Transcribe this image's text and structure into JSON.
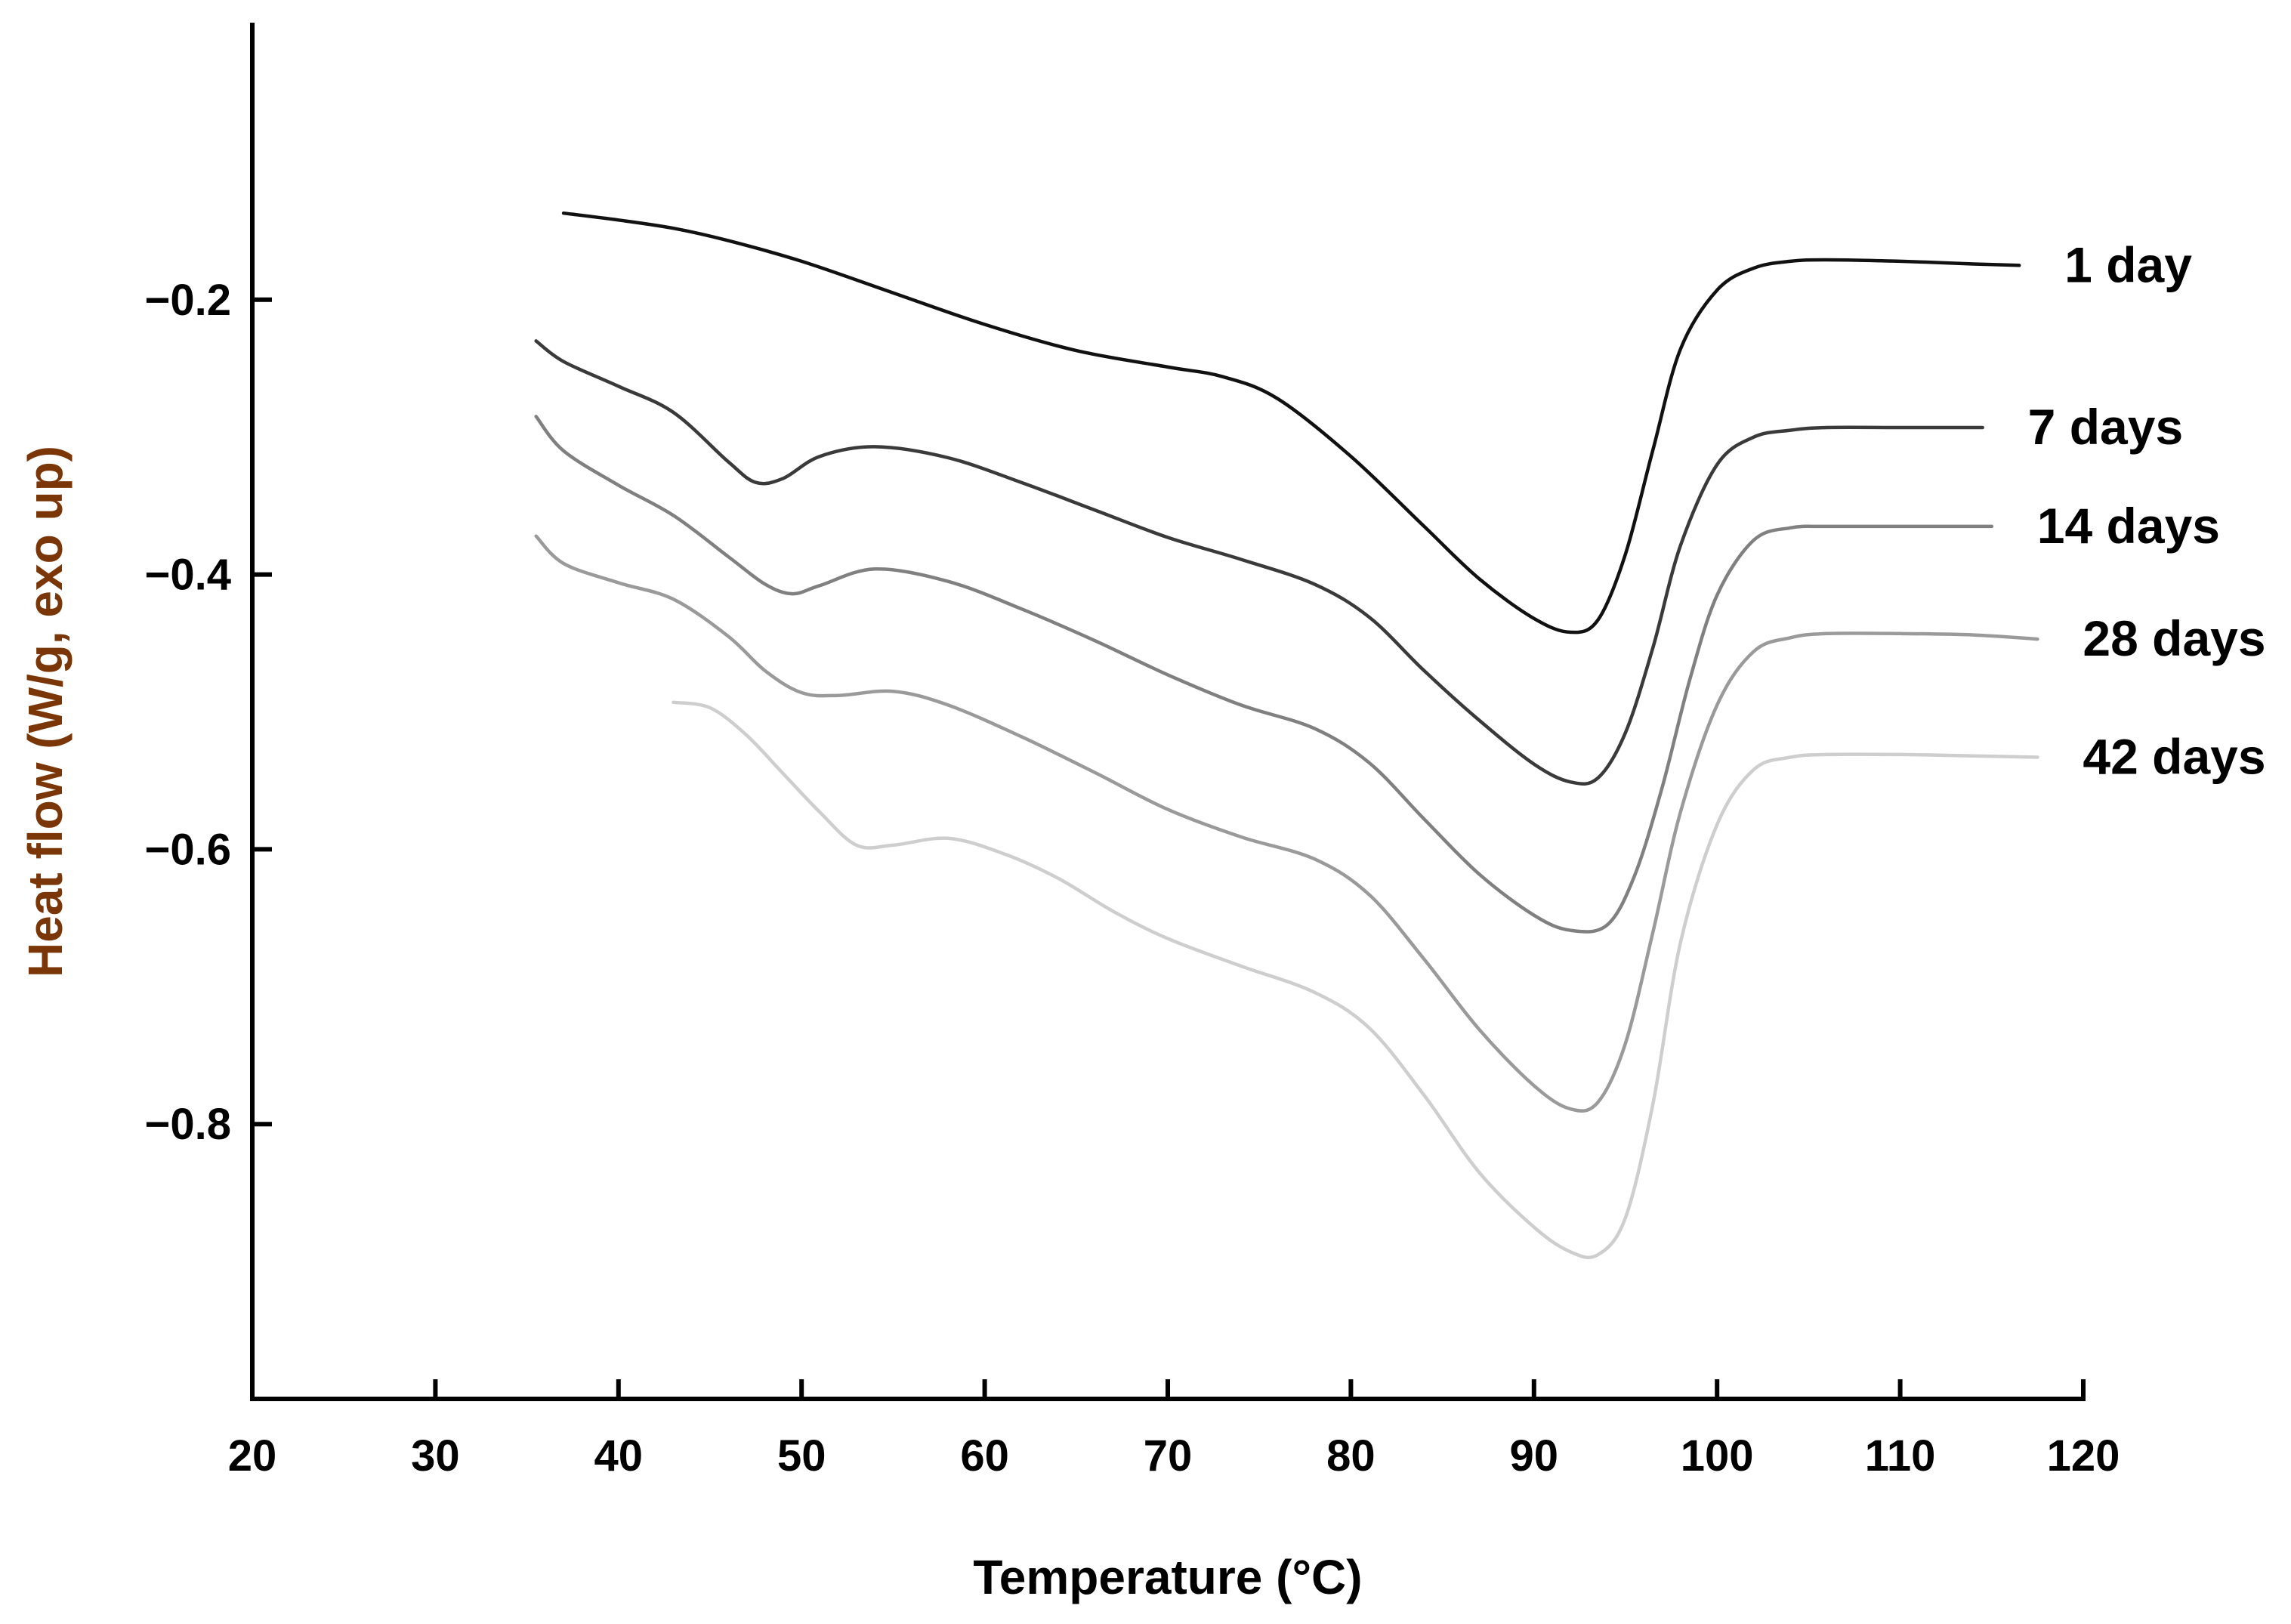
{
  "chart_data": {
    "type": "line",
    "title": "",
    "xlabel": "Temperature (°C)",
    "ylabel": "Heat flow (W/g, exo up)",
    "xlim": [
      20,
      120
    ],
    "ylim": [
      -1.0,
      0.0
    ],
    "xticks": [
      20,
      30,
      40,
      50,
      60,
      70,
      80,
      90,
      100,
      110,
      120
    ],
    "yticks": [
      -0.2,
      -0.4,
      -0.6,
      -0.8
    ],
    "xtick_labels": [
      "20",
      "30",
      "40",
      "50",
      "60",
      "70",
      "80",
      "90",
      "100",
      "110",
      "120"
    ],
    "ytick_labels": [
      "−0.2",
      "−0.4",
      "−0.6",
      "−0.8"
    ],
    "grid": false,
    "series": [
      {
        "name": "1 day",
        "color": "#111111",
        "x": [
          37,
          40,
          43,
          46,
          50,
          55,
          60,
          65,
          70,
          73,
          76,
          80,
          84,
          87,
          90,
          92,
          93.5,
          95,
          96.5,
          98,
          100,
          102,
          104,
          106,
          110,
          114,
          116.5
        ],
        "y": [
          -0.137,
          -0.142,
          -0.148,
          -0.157,
          -0.172,
          -0.195,
          -0.218,
          -0.237,
          -0.249,
          -0.256,
          -0.272,
          -0.314,
          -0.365,
          -0.403,
          -0.432,
          -0.442,
          -0.433,
          -0.385,
          -0.309,
          -0.236,
          -0.193,
          -0.177,
          -0.172,
          -0.171,
          -0.172,
          -0.174,
          -0.175
        ]
      },
      {
        "name": "7 days",
        "color": "#3a3a3a",
        "x": [
          35.5,
          37,
          40,
          43,
          46,
          47.5,
          49,
          51,
          54,
          58,
          62,
          66,
          70,
          74,
          78,
          81,
          84,
          87,
          90,
          92,
          93.5,
          95,
          96.5,
          98,
          100,
          102,
          104,
          106,
          110,
          114.5
        ],
        "y": [
          -0.23,
          -0.245,
          -0.263,
          -0.282,
          -0.318,
          -0.333,
          -0.33,
          -0.314,
          -0.307,
          -0.315,
          -0.333,
          -0.353,
          -0.373,
          -0.389,
          -0.407,
          -0.431,
          -0.47,
          -0.506,
          -0.538,
          -0.551,
          -0.548,
          -0.515,
          -0.453,
          -0.379,
          -0.32,
          -0.3,
          -0.295,
          -0.293,
          -0.293,
          -0.293
        ]
      },
      {
        "name": "14 days",
        "color": "#808080",
        "x": [
          35.5,
          37,
          40,
          43,
          46,
          48,
          49.5,
          51,
          54,
          58,
          62,
          66,
          70,
          74,
          78,
          81,
          84,
          87,
          90,
          92,
          94,
          95.5,
          97,
          98.5,
          100,
          102,
          104,
          106,
          110,
          115
        ],
        "y": [
          -0.285,
          -0.31,
          -0.335,
          -0.357,
          -0.387,
          -0.407,
          -0.414,
          -0.408,
          -0.396,
          -0.405,
          -0.425,
          -0.448,
          -0.473,
          -0.495,
          -0.512,
          -0.537,
          -0.578,
          -0.618,
          -0.648,
          -0.659,
          -0.655,
          -0.619,
          -0.555,
          -0.477,
          -0.415,
          -0.375,
          -0.366,
          -0.365,
          -0.365,
          -0.365
        ]
      },
      {
        "name": "28 days",
        "color": "#9a9a9a",
        "x": [
          35.5,
          37,
          40,
          43,
          46,
          48,
          50,
          52,
          55,
          58,
          62,
          66,
          70,
          74,
          78,
          81,
          84,
          87,
          90,
          92,
          93.5,
          95,
          96.5,
          98,
          100,
          102,
          104,
          106,
          110,
          114,
          117.5
        ],
        "y": [
          -0.372,
          -0.392,
          -0.406,
          -0.418,
          -0.445,
          -0.47,
          -0.486,
          -0.488,
          -0.485,
          -0.495,
          -0.518,
          -0.544,
          -0.571,
          -0.591,
          -0.607,
          -0.633,
          -0.68,
          -0.731,
          -0.772,
          -0.789,
          -0.784,
          -0.741,
          -0.66,
          -0.573,
          -0.495,
          -0.456,
          -0.446,
          -0.443,
          -0.443,
          -0.444,
          -0.447
        ]
      },
      {
        "name": "42 days",
        "color": "#cecece",
        "x": [
          43,
          45,
          47,
          49,
          51,
          53,
          55,
          58,
          61,
          64,
          67,
          70,
          74,
          78,
          81,
          84,
          87,
          90,
          92,
          93.5,
          95,
          96.5,
          98,
          100,
          102,
          104,
          106,
          110,
          114,
          117.5
        ],
        "y": [
          -0.493,
          -0.497,
          -0.517,
          -0.545,
          -0.573,
          -0.597,
          -0.597,
          -0.592,
          -0.603,
          -0.621,
          -0.645,
          -0.665,
          -0.685,
          -0.704,
          -0.73,
          -0.779,
          -0.835,
          -0.875,
          -0.893,
          -0.895,
          -0.868,
          -0.785,
          -0.668,
          -0.582,
          -0.542,
          -0.533,
          -0.531,
          -0.531,
          -0.532,
          -0.533
        ]
      }
    ]
  }
}
